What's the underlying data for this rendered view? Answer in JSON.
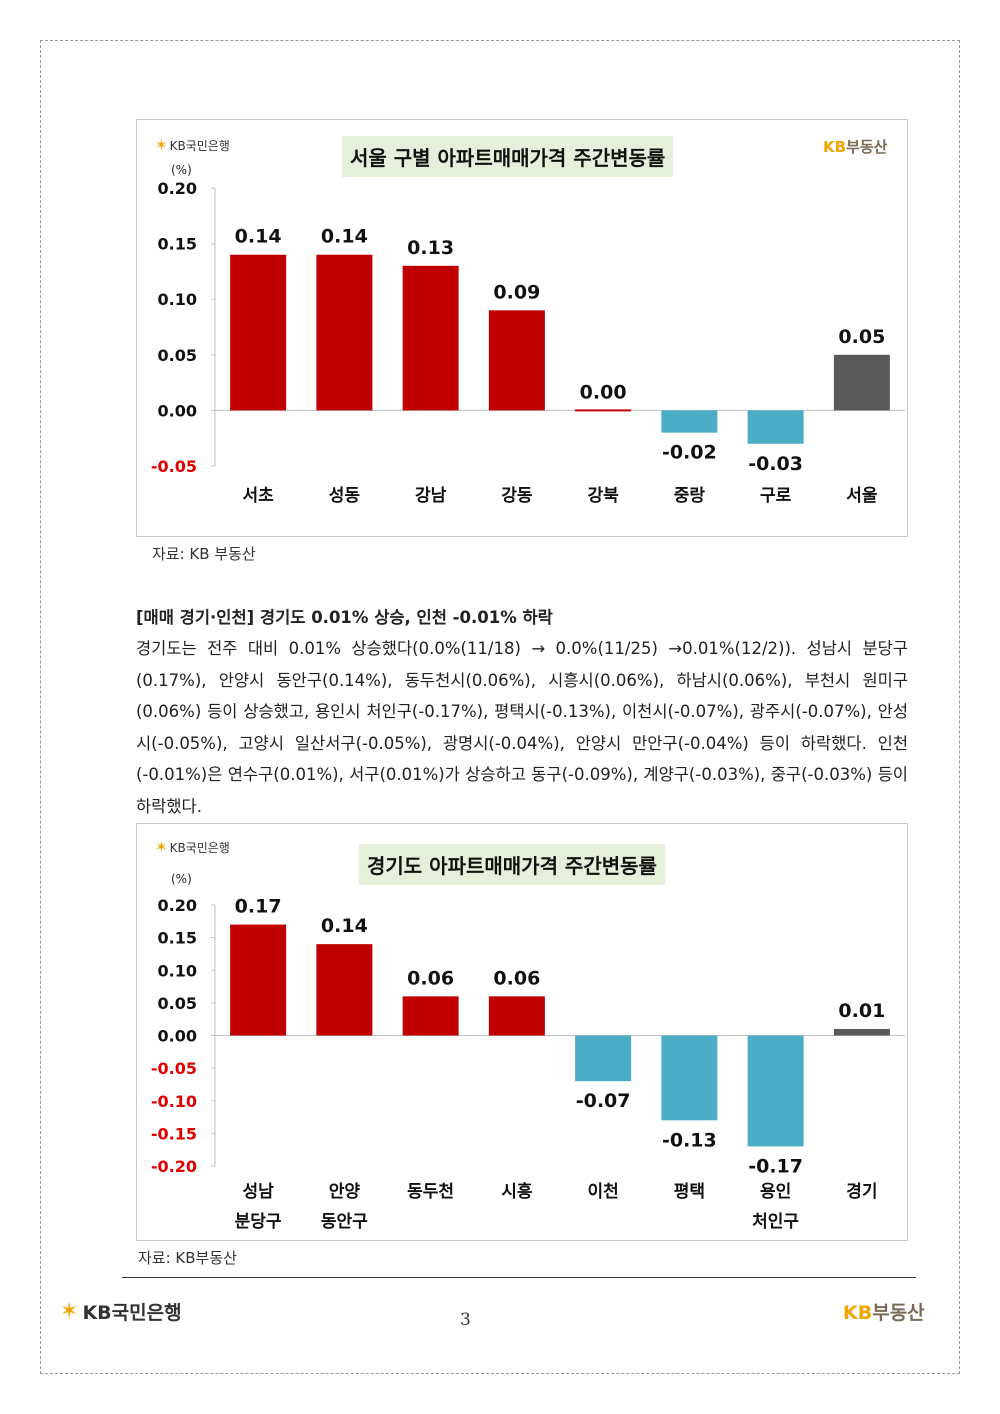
{
  "brand": {
    "bank_logo_text": "KB국민은행",
    "realestate_kb": "KB",
    "realestate_rest": "부동산"
  },
  "chart1": {
    "title": "서울 구별 아파트매매가격 주간변동률",
    "unit": "(%)",
    "source": "자료: KB 부동산"
  },
  "chart2": {
    "title": "경기도 아파트매매가격 주간변동률",
    "unit": "(%)",
    "source": "자료: KB부동산"
  },
  "chart_data": [
    {
      "type": "bar",
      "title": "서울 구별 아파트매매가격 주간변동률",
      "ylabel": "(%)",
      "ylim": [
        -0.05,
        0.2
      ],
      "yticks": [
        "0.20",
        "0.15",
        "0.10",
        "0.05",
        "0.00",
        "-0.05"
      ],
      "categories": [
        "서초",
        "성동",
        "강남",
        "강동",
        "강북",
        "중랑",
        "구로",
        "서울"
      ],
      "values": [
        0.14,
        0.14,
        0.13,
        0.09,
        0.0,
        -0.02,
        -0.03,
        0.05
      ],
      "labels": [
        "0.14",
        "0.14",
        "0.13",
        "0.09",
        "0.00",
        "-0.02",
        "-0.03",
        "0.05"
      ],
      "colors": {
        "positive": "#c00000",
        "negative": "#4bacc6",
        "total": "#595959"
      },
      "grid": false
    },
    {
      "type": "bar",
      "title": "경기도 아파트매매가격 주간변동률",
      "ylabel": "(%)",
      "ylim": [
        -0.2,
        0.2
      ],
      "yticks": [
        "0.20",
        "0.15",
        "0.10",
        "0.05",
        "0.00",
        "-0.05",
        "-0.10",
        "-0.15",
        "-0.20"
      ],
      "categories": [
        [
          "성남",
          "분당구"
        ],
        [
          "안양",
          "동안구"
        ],
        [
          "동두천"
        ],
        [
          "시흥"
        ],
        [
          "이천"
        ],
        [
          "평택"
        ],
        [
          "용인",
          "처인구"
        ],
        [
          "경기"
        ]
      ],
      "values": [
        0.17,
        0.14,
        0.06,
        0.06,
        -0.07,
        -0.13,
        -0.17,
        0.01
      ],
      "labels": [
        "0.17",
        "0.14",
        "0.06",
        "0.06",
        "-0.07",
        "-0.13",
        "-0.17",
        "0.01"
      ],
      "colors": {
        "positive": "#c00000",
        "negative": "#4bacc6",
        "total": "#595959"
      },
      "grid": false
    }
  ],
  "section": {
    "heading": "[매매 경기·인천] 경기도 0.01% 상승, 인천 -0.01% 하락",
    "body": "경기도는 전주 대비 0.01% 상승했다(0.0%(11/18) → 0.0%(11/25) →0.01%(12/2)). 성남시 분당구(0.17%), 안양시 동안구(0.14%), 동두천시(0.06%), 시흥시(0.06%), 하남시(0.06%), 부천시 원미구(0.06%) 등이 상승했고, 용인시 처인구(-0.17%), 평택시(-0.13%), 이천시(-0.07%), 광주시(-0.07%), 안성시(-0.05%), 고양시 일산서구(-0.05%), 광명시(-0.04%), 안양시 만안구(-0.04%) 등이 하락했다. 인천(-0.01%)은 연수구(0.01%), 서구(0.01%)가 상승하고 동구(-0.09%), 계양구(-0.03%), 중구(-0.03%) 등이 하락했다."
  },
  "footer": {
    "page_number": "3",
    "bank_logo_text": "KB국민은행",
    "realestate_kb": "KB",
    "realestate_rest": "부동산"
  }
}
